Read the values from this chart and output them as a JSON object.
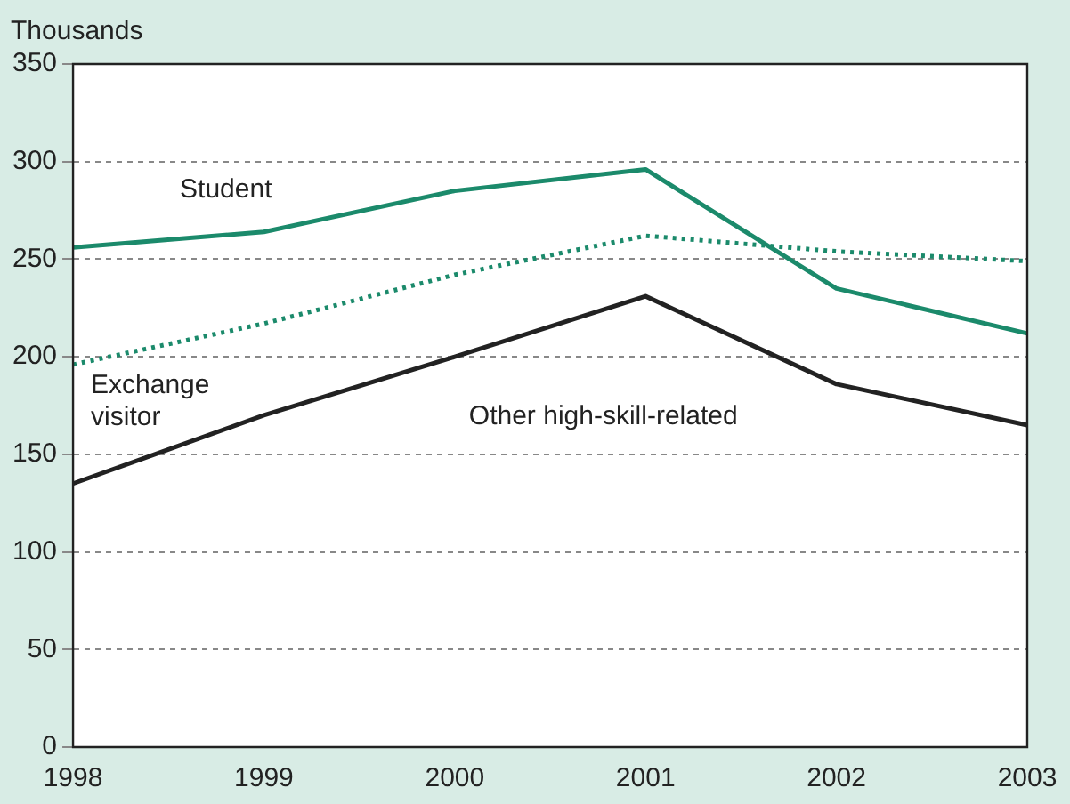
{
  "chart_data": {
    "type": "line",
    "ylabel": "Thousands",
    "categories": [
      "1998",
      "1999",
      "2000",
      "2001",
      "2002",
      "2003"
    ],
    "series": [
      {
        "name": "Student",
        "color": "#1b8a6b",
        "values": [
          256,
          264,
          285,
          296,
          235,
          212
        ],
        "line_style": "solid"
      },
      {
        "name": "Exchange visitor",
        "color": "#1b8a6b",
        "values": [
          196,
          217,
          242,
          262,
          254,
          249
        ],
        "line_style": "dotted"
      },
      {
        "name": "Other high-skill-related",
        "color": "#222222",
        "values": [
          135,
          170,
          200,
          231,
          186,
          165
        ],
        "line_style": "solid"
      }
    ],
    "ylim": [
      0,
      350
    ],
    "yticks": [
      0,
      50,
      100,
      150,
      200,
      250,
      300,
      350
    ],
    "grid": "y",
    "legend": false,
    "marker": "none"
  }
}
